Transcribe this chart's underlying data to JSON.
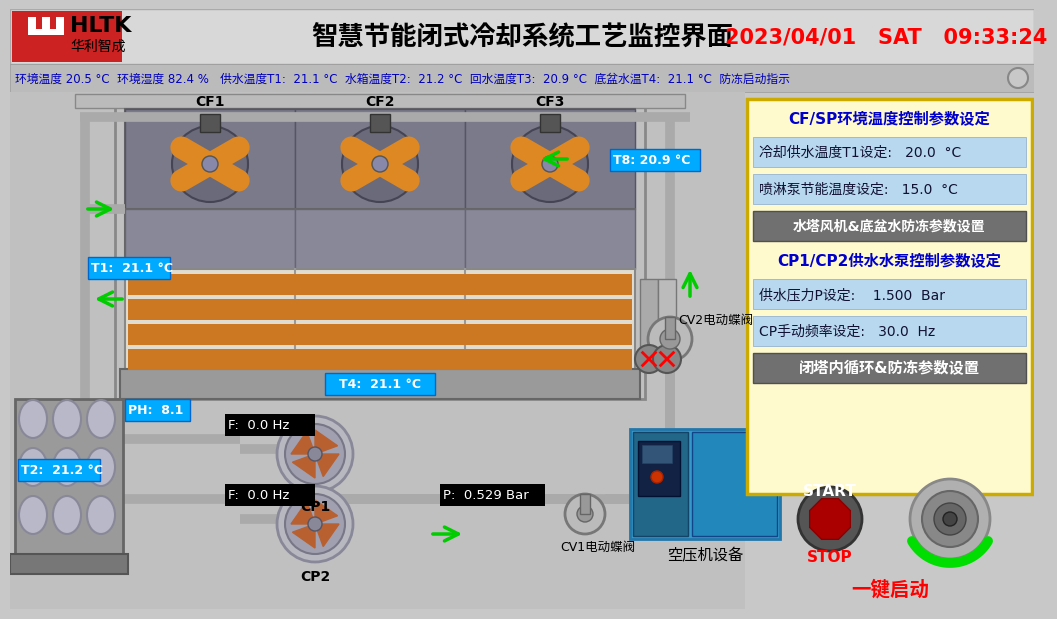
{
  "title": "智慧节能闭式冷却系统工艺监控界面",
  "datetime": "2023/04/01   SAT   09:33:24",
  "status_bar": "环境温度 20.5 °C  环境湿度 82.4 %   供水温度T1:  21.1 °C  水箱温度T2:  21.2 °C  回水温度T3:  20.9 °C  底盆水温T4:  21.1 °C  防冻启动指示",
  "bg_color": "#c8c8c8",
  "header_bg": "#e8e8e8",
  "logo_red": "#cc2222",
  "right_panel_bg": "#fffacd",
  "right_panel_border": "#ccaa00",
  "param_row_bg": "#b8d8f0",
  "gray_btn_bg": "#707070",
  "tower_gray": "#8a8a8a",
  "tower_dark": "#666666",
  "pipe_color": "#aaaaaa",
  "pipe_dark": "#888888",
  "fan_bg": "#7a7a8a",
  "stripe_orange": "#cc7722",
  "stripe_white": "#e8e0d0",
  "pump_brown": "#b86030",
  "cf_fans": [
    "CF1",
    "CF2",
    "CF3"
  ],
  "tag_bg": "#00aaff",
  "tag_border": "#0066cc"
}
